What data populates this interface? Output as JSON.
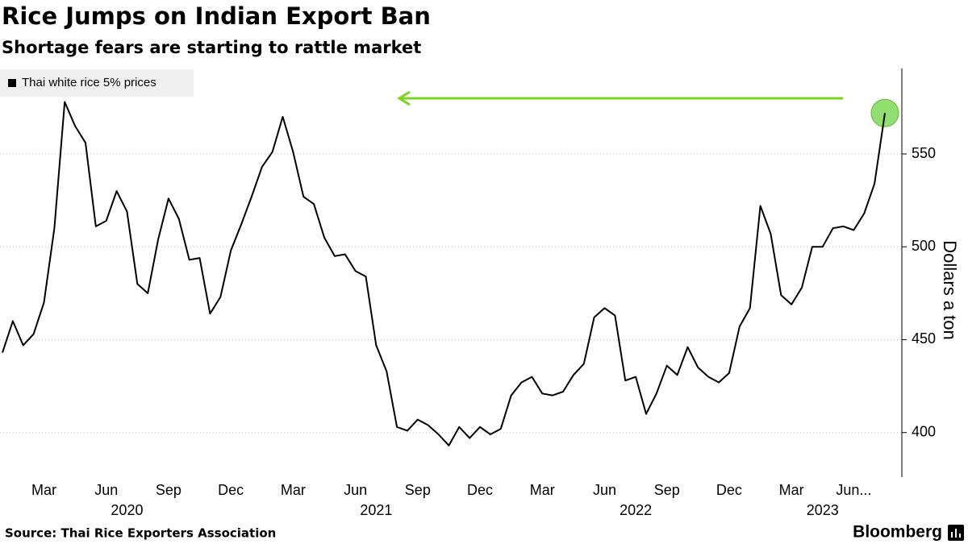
{
  "chart_data": {
    "type": "line",
    "title": "Rice Jumps on Indian Export Ban",
    "subtitle": "Shortage fears are starting to rattle market",
    "y_axis_label": "Dollars a ton",
    "source": "Source: Thai Rice Exporters Association",
    "brand": "Bloomberg",
    "categories": [
      null,
      null,
      null,
      null,
      "Mar",
      null,
      null,
      null,
      null,
      null,
      "Jun",
      null,
      null,
      null,
      null,
      null,
      "Sep",
      null,
      null,
      null,
      null,
      null,
      "Dec",
      null,
      null,
      null,
      null,
      null,
      "Mar",
      null,
      null,
      null,
      null,
      null,
      "Jun",
      null,
      null,
      null,
      null,
      null,
      "Sep",
      null,
      null,
      null,
      null,
      null,
      "Dec",
      null,
      null,
      null,
      null,
      null,
      "Mar",
      null,
      null,
      null,
      null,
      null,
      "Jun",
      null,
      null,
      null,
      null,
      null,
      "Sep",
      null,
      null,
      null,
      null,
      null,
      "Dec",
      null,
      null,
      null,
      null,
      null,
      "Mar",
      null,
      null,
      null,
      null,
      null,
      "Jun...",
      null,
      null,
      null
    ],
    "x_year_labels": [
      null,
      null,
      null,
      null,
      null,
      null,
      null,
      null,
      null,
      null,
      null,
      null,
      "2020",
      null,
      null,
      null,
      null,
      null,
      null,
      null,
      null,
      null,
      null,
      null,
      null,
      null,
      null,
      null,
      null,
      null,
      null,
      null,
      null,
      null,
      null,
      null,
      "2021",
      null,
      null,
      null,
      null,
      null,
      null,
      null,
      null,
      null,
      null,
      null,
      null,
      null,
      null,
      null,
      null,
      null,
      null,
      null,
      null,
      null,
      null,
      null,
      null,
      "2022",
      null,
      null,
      null,
      null,
      null,
      null,
      null,
      null,
      null,
      null,
      null,
      null,
      null,
      null,
      null,
      null,
      null,
      "2023",
      null,
      null,
      null,
      null,
      null,
      null
    ],
    "series": [
      {
        "name": "Thai white rice 5% prices",
        "color": "#000000",
        "values": [
          443,
          460,
          447,
          453,
          470,
          510,
          578,
          565,
          556,
          511,
          514,
          530,
          519,
          480,
          475,
          504,
          526,
          515,
          493,
          494,
          464,
          473,
          498,
          512,
          527,
          543,
          551,
          570,
          551,
          527,
          523,
          505,
          495,
          496,
          487,
          484,
          447,
          433,
          403,
          401,
          407,
          404,
          399,
          393,
          403,
          397,
          403,
          399,
          402,
          420,
          427,
          430,
          421,
          420,
          422,
          431,
          437,
          462,
          467,
          463,
          428,
          430,
          410,
          421,
          436,
          431,
          446,
          435,
          430,
          427,
          432,
          457,
          467,
          522,
          507,
          474,
          469,
          478,
          500,
          500,
          510,
          511,
          509,
          518,
          534,
          572
        ]
      }
    ],
    "highlight_color": "#7ed957",
    "ylim": [
      376,
      596
    ],
    "yticks": [
      400,
      450,
      500,
      550
    ],
    "y_axis_side": "right",
    "grid": true,
    "legend": "top-left"
  }
}
